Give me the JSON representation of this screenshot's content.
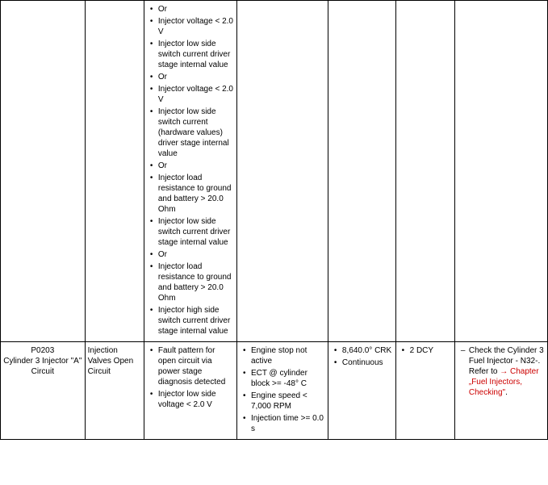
{
  "row1": {
    "col3_items": [
      "Or",
      "Injector voltage < 2.0 V",
      "Injector low side switch current driver stage internal value",
      "Or",
      "Injector voltage < 2.0 V",
      "Injector low side switch current (hardware values) driver stage internal value",
      "Or",
      "Injector load resistance to ground and battery > 20.0 Ohm",
      "Injector low side switch current driver stage internal value",
      "Or",
      "Injector load resistance to ground and battery > 20.0 Ohm",
      "Injector high side switch current driver stage internal value"
    ]
  },
  "row2": {
    "code": "P0203",
    "title": "Cylinder 3 Injector \"A\" Circuit",
    "col2": "Injection Valves Open Circuit",
    "col3_items": [
      "Fault pattern for open circuit via power stage diagnosis detected",
      "Injector low side voltage < 2.0 V"
    ],
    "col4_items": [
      "Engine stop not active",
      "ECT @ cylinder block >= -48° C",
      "Engine speed < 7,000 RPM",
      "Injection time >= 0.0 s"
    ],
    "col5_items": [
      "8,640.0° CRK",
      "Continuous"
    ],
    "col6_items": [
      "2 DCY"
    ],
    "col7_prefix": "Check the Cylinder 3 Fuel Injector - N32-.  Refer to ",
    "col7_link": "→ Chapter „Fuel Injectors, Checking\""
  }
}
